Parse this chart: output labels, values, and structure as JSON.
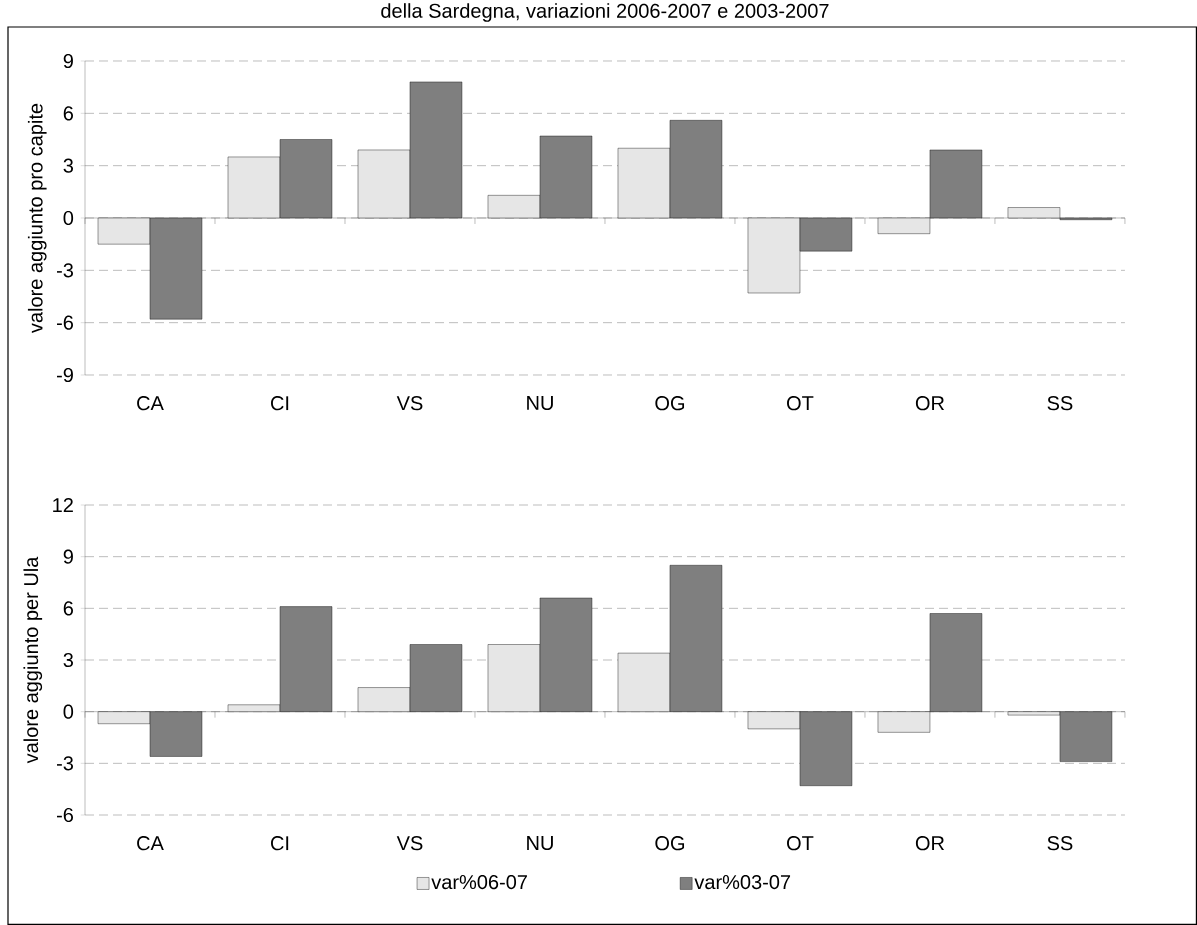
{
  "chart_data": [
    {
      "type": "bar",
      "title": "della Sardegna, variazioni 2006-2007 e 2003-2007",
      "ylabel": "valore aggiunto pro capite",
      "categories": [
        "CA",
        "CI",
        "VS",
        "NU",
        "OG",
        "OT",
        "OR",
        "SS"
      ],
      "series": [
        {
          "color": "#e6e6e6",
          "values": [
            -1.5,
            3.5,
            3.9,
            1.3,
            4.0,
            -4.3,
            -0.9,
            0.6
          ]
        },
        {
          "color": "#7f7f7f",
          "values": [
            -5.8,
            4.5,
            7.8,
            4.7,
            5.6,
            -1.9,
            3.9,
            -0.1
          ]
        }
      ],
      "ylim": [
        -9,
        9
      ],
      "yticks": [
        -9,
        -6,
        -3,
        0,
        3,
        6,
        9
      ],
      "grid": "y"
    },
    {
      "type": "bar",
      "ylabel": "valore aggiunto per Ula",
      "categories": [
        "CA",
        "CI",
        "VS",
        "NU",
        "OG",
        "OT",
        "OR",
        "SS"
      ],
      "series": [
        {
          "name": "var%06-07",
          "color": "#e6e6e6",
          "values": [
            -0.7,
            0.4,
            1.4,
            3.9,
            3.4,
            -1.0,
            -1.2,
            -0.2
          ]
        },
        {
          "name": "var%03-07",
          "color": "#7f7f7f",
          "values": [
            -2.6,
            6.1,
            3.9,
            6.6,
            8.5,
            -4.3,
            5.7,
            -2.9
          ]
        }
      ],
      "ylim": [
        -6,
        12
      ],
      "yticks": [
        -6,
        -3,
        0,
        3,
        6,
        9,
        12
      ],
      "grid": "y",
      "legend": "bottom"
    }
  ]
}
